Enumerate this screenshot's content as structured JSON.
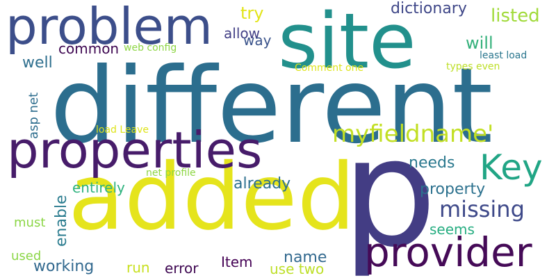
{
  "words": [
    {
      "text": "different",
      "color": "#2c6e8e",
      "orientation": "horizontal"
    },
    {
      "text": "added",
      "color": "#e5e41c",
      "orientation": "horizontal"
    },
    {
      "text": "p",
      "color": "#433d84",
      "orientation": "horizontal"
    },
    {
      "text": "site",
      "color": "#22908c",
      "orientation": "horizontal"
    },
    {
      "text": "problem",
      "color": "#3c4e8a",
      "orientation": "horizontal"
    },
    {
      "text": "properties",
      "color": "#471c6a",
      "orientation": "horizontal"
    },
    {
      "text": "provider",
      "color": "#450a57",
      "orientation": "horizontal"
    },
    {
      "text": "Key",
      "color": "#21a585",
      "orientation": "horizontal"
    },
    {
      "text": "myfieldname'",
      "color": "#c2df23",
      "orientation": "horizontal"
    },
    {
      "text": "missing",
      "color": "#3e4989",
      "orientation": "horizontal"
    },
    {
      "text": "dictionary",
      "color": "#3f4788",
      "orientation": "horizontal"
    },
    {
      "text": "listed",
      "color": "#a0da39",
      "orientation": "horizontal"
    },
    {
      "text": "will",
      "color": "#33b07a",
      "orientation": "horizontal"
    },
    {
      "text": "try",
      "color": "#e2e418",
      "orientation": "horizontal"
    },
    {
      "text": "allow",
      "color": "#423f85",
      "orientation": "horizontal"
    },
    {
      "text": "way",
      "color": "#3a538b",
      "orientation": "horizontal"
    },
    {
      "text": "common",
      "color": "#3e0751",
      "orientation": "horizontal"
    },
    {
      "text": "well",
      "color": "#2e6f8e",
      "orientation": "horizontal"
    },
    {
      "text": "web config",
      "color": "#8ed645",
      "orientation": "horizontal"
    },
    {
      "text": "least load",
      "color": "#2a768e",
      "orientation": "horizontal"
    },
    {
      "text": "types even",
      "color": "#bddf26",
      "orientation": "horizontal"
    },
    {
      "text": "Comment one",
      "color": "#dde318",
      "orientation": "horizontal"
    },
    {
      "text": "asp net",
      "color": "#2e6e8e",
      "orientation": "vertical"
    },
    {
      "text": "load Leave",
      "color": "#dde318",
      "orientation": "horizontal"
    },
    {
      "text": "net profile",
      "color": "#8ed645",
      "orientation": "horizontal"
    },
    {
      "text": "needs",
      "color": "#2a788e",
      "orientation": "horizontal"
    },
    {
      "text": "already",
      "color": "#2d708e",
      "orientation": "horizontal"
    },
    {
      "text": "property",
      "color": "#2c718e",
      "orientation": "horizontal"
    },
    {
      "text": "entirely",
      "color": "#2db27d",
      "orientation": "horizontal"
    },
    {
      "text": "enable",
      "color": "#297b8e",
      "orientation": "vertical"
    },
    {
      "text": "must",
      "color": "#8bd646",
      "orientation": "horizontal"
    },
    {
      "text": "used",
      "color": "#8bd646",
      "orientation": "horizontal"
    },
    {
      "text": "seems",
      "color": "#26ad81",
      "orientation": "horizontal"
    },
    {
      "text": "name",
      "color": "#31688e",
      "orientation": "horizontal"
    },
    {
      "text": "working",
      "color": "#31688e",
      "orientation": "horizontal"
    },
    {
      "text": "run",
      "color": "#c8e020",
      "orientation": "horizontal"
    },
    {
      "text": "error",
      "color": "#3e0751",
      "orientation": "horizontal"
    },
    {
      "text": "Item",
      "color": "#440154",
      "orientation": "horizontal"
    },
    {
      "text": "use two",
      "color": "#bddf26",
      "orientation": "horizontal"
    }
  ]
}
